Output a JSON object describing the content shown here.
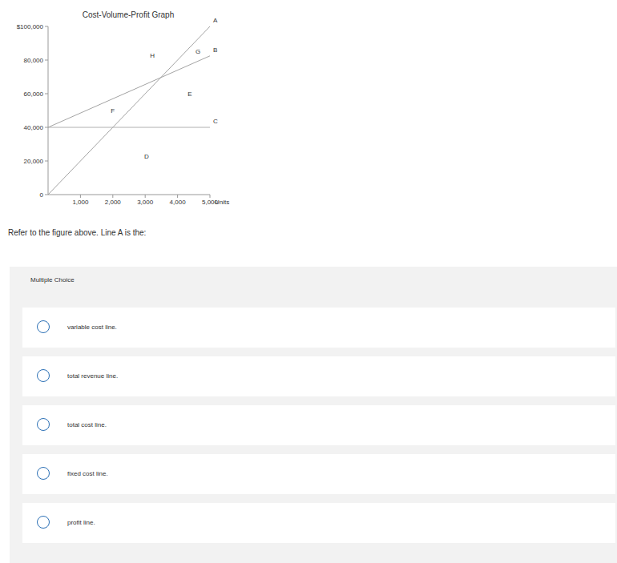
{
  "chart_data": {
    "type": "line",
    "title": "Cost-Volume-Profit Graph",
    "x_label": "Units",
    "x": [
      0,
      5000
    ],
    "series": [
      {
        "name": "A",
        "color": "#a3a3a3",
        "values": [
          0,
          100000
        ]
      },
      {
        "name": "B",
        "color": "#a3a3a3",
        "values": [
          40000,
          82500
        ]
      },
      {
        "name": "C",
        "color": "#b0b0b0",
        "values": [
          40000,
          40000
        ]
      }
    ],
    "xlim": [
      0,
      5000
    ],
    "xticks": [
      {
        "value": 1000,
        "label": "1,000"
      },
      {
        "value": 2000,
        "label": "2,000"
      },
      {
        "value": 3000,
        "label": "3,000"
      },
      {
        "value": 4000,
        "label": "4,000"
      },
      {
        "value": 5000,
        "label": "5,000"
      }
    ],
    "ylim": [
      0,
      100000
    ],
    "yticks": [
      0,
      {
        "value": 20000,
        "label": "20,000"
      },
      {
        "value": 40000,
        "label": "40,000"
      },
      {
        "value": 60000,
        "label": "60,000"
      },
      {
        "value": 80000,
        "label": "80,000"
      },
      {
        "value": 100000,
        "label": "$100,000"
      }
    ],
    "grid": false,
    "annotations": [
      {
        "text": "D",
        "x": 3040,
        "y": 23000
      },
      {
        "text": "E",
        "x": 4380,
        "y": 60000
      },
      {
        "text": "F",
        "x": 2000,
        "y": 50000
      },
      {
        "text": "G",
        "x": 4630,
        "y": 85000
      },
      {
        "text": "H",
        "x": 3220,
        "y": 83000
      }
    ]
  },
  "question": {
    "text": "Refer to the figure above. Line A is the:",
    "label": "Multiple Choice",
    "options": [
      "variable cost line.",
      "total revenue line.",
      "total cost line.",
      "fixed cost line.",
      "profit line."
    ]
  }
}
